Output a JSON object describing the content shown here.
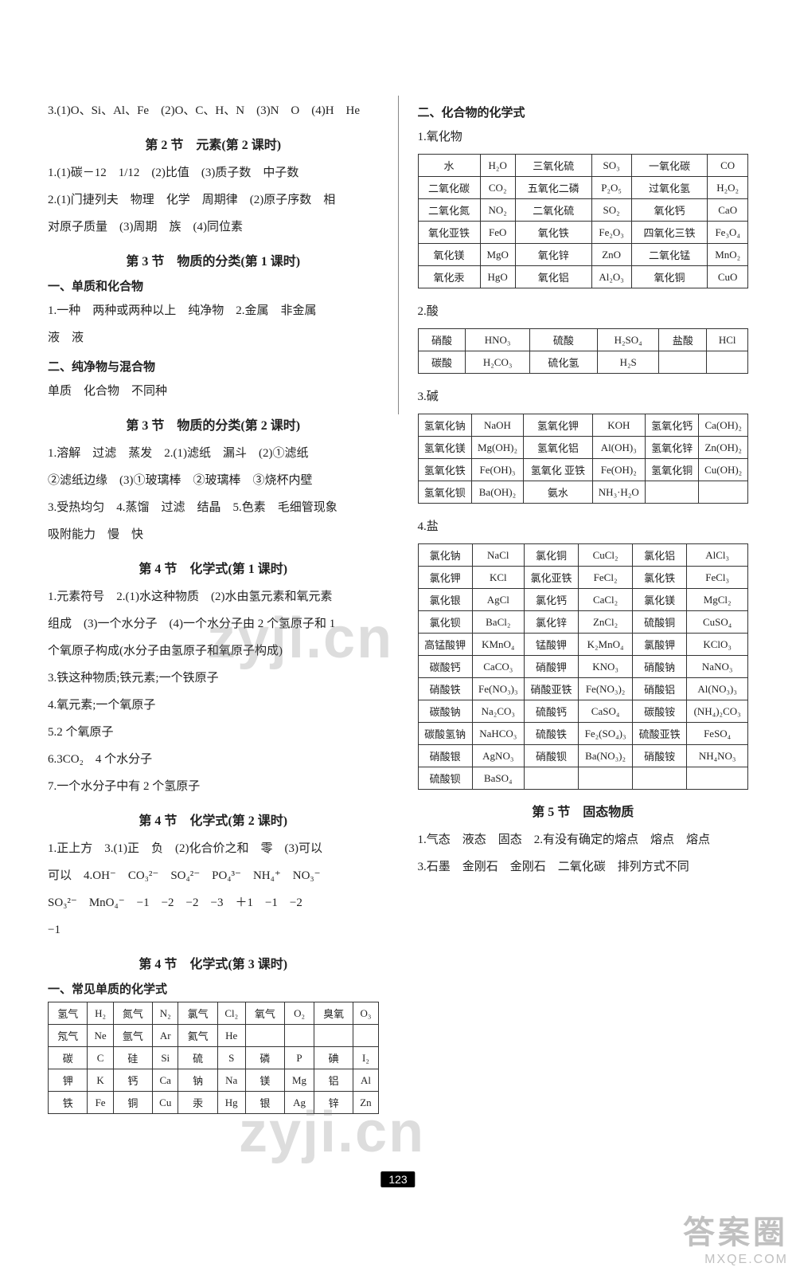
{
  "page_number": "123",
  "watermarks": {
    "wm1": "zyji.cn",
    "wm2": "zyji.cn",
    "br_big": "答案圈",
    "br_small": "MXQE.COM"
  },
  "left": {
    "top_line": "3.(1)O、Si、Al、Fe　(2)O、C、H、N　(3)N　O　(4)H　He",
    "s2_title": "第 2 节　元素(第 2 课时)",
    "s2_l1": "1.(1)碳－12　1/12　(2)比值　(3)质子数　中子数",
    "s2_l2": "2.(1)门捷列夫　物理　化学　周期律　(2)原子序数　相",
    "s2_l3": "对原子质量　(3)周期　族　(4)同位素",
    "s3a_title": "第 3 节　物质的分类(第 1 课时)",
    "s3a_h1": "一、单质和化合物",
    "s3a_l1": "1.一种　两种或两种以上　纯净物　2.金属　非金属",
    "s3a_l2": "液　液",
    "s3a_h2": "二、纯净物与混合物",
    "s3a_l3": "单质　化合物　不同种",
    "s3b_title": "第 3 节　物质的分类(第 2 课时)",
    "s3b_l1": "1.溶解　过滤　蒸发　2.(1)滤纸　漏斗　(2)①滤纸",
    "s3b_l2": "②滤纸边缘　(3)①玻璃棒　②玻璃棒　③烧杯内壁",
    "s3b_l3": "3.受热均匀　4.蒸馏　过滤　结晶　5.色素　毛细管现象",
    "s3b_l4": "吸附能力　慢　快",
    "s4a_title": "第 4 节　化学式(第 1 课时)",
    "s4a_l1": "1.元素符号　2.(1)水这种物质　(2)水由氢元素和氧元素",
    "s4a_l2": "组成　(3)一个水分子　(4)一个水分子由 2 个氢原子和 1",
    "s4a_l3": "个氧原子构成(水分子由氢原子和氧原子构成)",
    "s4a_l4": "3.铁这种物质;铁元素;一个铁原子",
    "s4a_l5": "4.氧元素;一个氧原子",
    "s4a_l6": "5.2 个氧原子",
    "s4a_l7": "6.3CO₂　4 个水分子",
    "s4a_l8": "7.一个水分子中有 2 个氢原子",
    "s4b_title": "第 4 节　化学式(第 2 课时)",
    "s4b_l1": "1.正上方　3.(1)正　负　(2)化合价之和　零　(3)可以",
    "s4b_l2": "可以　4.OH⁻　CO₃²⁻　SO₄²⁻　PO₄³⁻　NH₄⁺　NO₃⁻",
    "s4b_l3": "SO₃²⁻　MnO₄⁻　−1　−2　−2　−3　＋1　−1　−2",
    "s4b_l4": "−1",
    "s4c_title": "第 4 节　化学式(第 3 课时)",
    "s4c_h1": "一、常见单质的化学式",
    "table_elems": [
      [
        "氢气",
        "H₂",
        "氮气",
        "N₂",
        "氯气",
        "Cl₂",
        "氧气",
        "O₂",
        "臭氧",
        "O₃"
      ],
      [
        "氖气",
        "Ne",
        "氩气",
        "Ar",
        "氦气",
        "He",
        "",
        "",
        "",
        ""
      ],
      [
        "碳",
        "C",
        "硅",
        "Si",
        "硫",
        "S",
        "磷",
        "P",
        "碘",
        "I₂"
      ],
      [
        "钾",
        "K",
        "钙",
        "Ca",
        "钠",
        "Na",
        "镁",
        "Mg",
        "铝",
        "Al"
      ],
      [
        "铁",
        "Fe",
        "铜",
        "Cu",
        "汞",
        "Hg",
        "银",
        "Ag",
        "锌",
        "Zn"
      ]
    ]
  },
  "right": {
    "h_compounds": "二、化合物的化学式",
    "h_oxides": "1.氧化物",
    "table_oxides": [
      [
        "水",
        "H₂O",
        "三氧化硫",
        "SO₃",
        "一氧化碳",
        "CO"
      ],
      [
        "二氧化碳",
        "CO₂",
        "五氧化二磷",
        "P₂O₅",
        "过氧化氢",
        "H₂O₂"
      ],
      [
        "二氧化氮",
        "NO₂",
        "二氧化硫",
        "SO₂",
        "氧化钙",
        "CaO"
      ],
      [
        "氧化亚铁",
        "FeO",
        "氧化铁",
        "Fe₂O₃",
        "四氧化三铁",
        "Fe₃O₄"
      ],
      [
        "氧化镁",
        "MgO",
        "氧化锌",
        "ZnO",
        "二氧化锰",
        "MnO₂"
      ],
      [
        "氧化汞",
        "HgO",
        "氧化铝",
        "Al₂O₃",
        "氧化铜",
        "CuO"
      ]
    ],
    "h_acids": "2.酸",
    "table_acids": [
      [
        "硝酸",
        "HNO₃",
        "硫酸",
        "H₂SO₄",
        "盐酸",
        "HCl"
      ],
      [
        "碳酸",
        "H₂CO₃",
        "硫化氢",
        "H₂S",
        "",
        ""
      ]
    ],
    "h_bases": "3.碱",
    "table_bases": [
      [
        "氢氧化钠",
        "NaOH",
        "氢氧化钾",
        "KOH",
        "氢氧化钙",
        "Ca(OH)₂"
      ],
      [
        "氢氧化镁",
        "Mg(OH)₂",
        "氢氧化铝",
        "Al(OH)₃",
        "氢氧化锌",
        "Zn(OH)₂"
      ],
      [
        "氢氧化铁",
        "Fe(OH)₃",
        "氢氧化\n亚铁",
        "Fe(OH)₂",
        "氢氧化铜",
        "Cu(OH)₂"
      ],
      [
        "氢氧化钡",
        "Ba(OH)₂",
        "氨水",
        "NH₃·H₂O",
        "",
        ""
      ]
    ],
    "h_salts": "4.盐",
    "table_salts": [
      [
        "氯化钠",
        "NaCl",
        "氯化铜",
        "CuCl₂",
        "氯化铝",
        "AlCl₃"
      ],
      [
        "氯化钾",
        "KCl",
        "氯化亚铁",
        "FeCl₂",
        "氯化铁",
        "FeCl₃"
      ],
      [
        "氯化银",
        "AgCl",
        "氯化钙",
        "CaCl₂",
        "氯化镁",
        "MgCl₂"
      ],
      [
        "氯化钡",
        "BaCl₂",
        "氯化锌",
        "ZnCl₂",
        "硫酸铜",
        "CuSO₄"
      ],
      [
        "高锰酸钾",
        "KMnO₄",
        "锰酸钾",
        "K₂MnO₄",
        "氯酸钾",
        "KClO₃"
      ],
      [
        "碳酸钙",
        "CaCO₃",
        "硝酸钾",
        "KNO₃",
        "硝酸钠",
        "NaNO₃"
      ],
      [
        "硝酸铁",
        "Fe(NO₃)₃",
        "硝酸亚铁",
        "Fe(NO₃)₂",
        "硝酸铝",
        "Al(NO₃)₃"
      ],
      [
        "碳酸钠",
        "Na₂CO₃",
        "硫酸钙",
        "CaSO₄",
        "碳酸铵",
        "(NH₄)₂CO₃"
      ],
      [
        "碳酸氢钠",
        "NaHCO₃",
        "硫酸铁",
        "Fe₂(SO₄)₃",
        "硫酸亚铁",
        "FeSO₄"
      ],
      [
        "硝酸银",
        "AgNO₃",
        "硝酸钡",
        "Ba(NO₃)₂",
        "硝酸铵",
        "NH₄NO₃"
      ],
      [
        "硫酸钡",
        "BaSO₄",
        "",
        "",
        "",
        ""
      ]
    ],
    "s5_title": "第 5 节　固态物质",
    "s5_l1": "1.气态　液态　固态　2.有没有确定的熔点　熔点　熔点",
    "s5_l2": "3.石墨　金刚石　金刚石　二氧化碳　排列方式不同"
  }
}
